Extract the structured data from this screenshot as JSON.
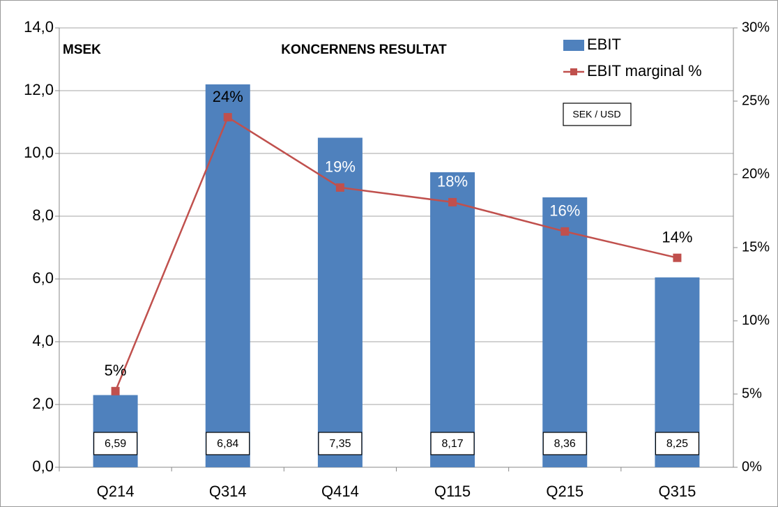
{
  "chart_data": {
    "type": "bar_line",
    "title": "KONCERNENS RESULTAT",
    "y_label": "MSEK",
    "categories": [
      "Q214",
      "Q314",
      "Q414",
      "Q115",
      "Q215",
      "Q315"
    ],
    "series": [
      {
        "name": "EBIT",
        "type": "bar",
        "color": "#4f81bd",
        "values": [
          2.3,
          12.2,
          10.5,
          9.4,
          8.6,
          6.05
        ]
      },
      {
        "name": "EBIT marginal %",
        "type": "line",
        "axis": "y2",
        "color": "#c0504d",
        "values": [
          5.2,
          23.9,
          19.1,
          18.1,
          16.1,
          14.3
        ],
        "value_labels": [
          "5%",
          "24%",
          "19%",
          "18%",
          "16%",
          "14%"
        ],
        "value_label_colors": [
          "#000000",
          "#000000",
          "#ffffff",
          "#ffffff",
          "#ffffff",
          "#000000"
        ]
      }
    ],
    "ylim": [
      0,
      14
    ],
    "yticks": [
      {
        "value": 0,
        "label": "0,0"
      },
      {
        "value": 2,
        "label": "2,0"
      },
      {
        "value": 4,
        "label": "4,0"
      },
      {
        "value": 6,
        "label": "6,0"
      },
      {
        "value": 8,
        "label": "8,0"
      },
      {
        "value": 10,
        "label": "10,0"
      },
      {
        "value": 12,
        "label": "12,0"
      },
      {
        "value": 14,
        "label": "14,0"
      }
    ],
    "y2lim": [
      0,
      30
    ],
    "y2ticks": [
      {
        "value": 0,
        "label": "0%"
      },
      {
        "value": 5,
        "label": "5%"
      },
      {
        "value": 10,
        "label": "10%"
      },
      {
        "value": 15,
        "label": "15%"
      },
      {
        "value": 20,
        "label": "20%"
      },
      {
        "value": 25,
        "label": "25%"
      },
      {
        "value": 30,
        "label": "30%"
      }
    ],
    "grid": true,
    "legend": "top-right",
    "fx_box_title": "SEK / USD",
    "fx_rates": [
      "6,59",
      "6,84",
      "7,35",
      "8,17",
      "8,36",
      "8,25"
    ]
  }
}
